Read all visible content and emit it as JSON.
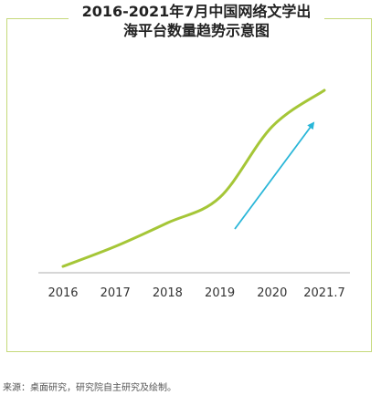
{
  "chart_data": {
    "type": "line",
    "title_line1": "2016-2021年7月中国网络文学出",
    "title_line2": "海平台数量趋势示意图",
    "categories": [
      "2016",
      "2017",
      "2018",
      "2019",
      "2020",
      "2021.7"
    ],
    "series": [
      {
        "values": [
          3,
          14,
          27,
          41,
          80,
          100
        ],
        "color": "#a5c637"
      }
    ],
    "ylim": [
      0,
      100
    ],
    "axis_color": "#c8c8c8",
    "arrow_color": "#29b6d8",
    "grid": false,
    "legend": "none"
  },
  "footer": {
    "source": "来源：桌面研究，研究院自主研究及绘制。"
  }
}
